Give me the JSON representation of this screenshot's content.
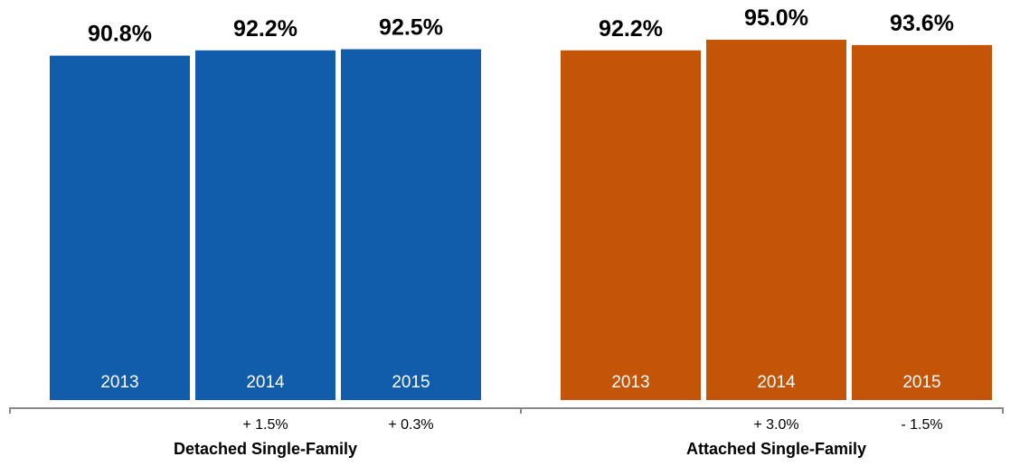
{
  "chart_data": {
    "type": "bar",
    "title": "",
    "xlabel": "",
    "ylabel": "",
    "ylim": [
      0,
      100
    ],
    "grid": false,
    "groups": [
      {
        "name": "Detached Single-Family",
        "color": "#115dab",
        "bars": [
          {
            "year": "2013",
            "value": 90.8,
            "value_label": "90.8%",
            "change": ""
          },
          {
            "year": "2014",
            "value": 92.2,
            "value_label": "92.2%",
            "change": "+ 1.5%"
          },
          {
            "year": "2015",
            "value": 92.5,
            "value_label": "92.5%",
            "change": "+ 0.3%"
          }
        ]
      },
      {
        "name": "Attached Single-Family",
        "color": "#c45508",
        "bars": [
          {
            "year": "2013",
            "value": 92.2,
            "value_label": "92.2%",
            "change": ""
          },
          {
            "year": "2014",
            "value": 95.0,
            "value_label": "95.0%",
            "change": "+ 3.0%"
          },
          {
            "year": "2015",
            "value": 93.6,
            "value_label": "93.6%",
            "change": "- 1.5%"
          }
        ]
      }
    ]
  }
}
